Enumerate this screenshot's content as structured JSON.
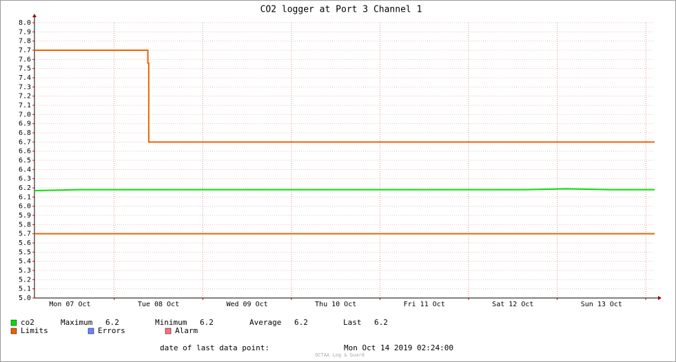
{
  "chart_data": {
    "type": "line",
    "title": "CO2 logger at Port 3 Channel 1",
    "xlim": [
      0,
      7
    ],
    "xticks": [
      {
        "value": 0.4,
        "label": "Mon 07 Oct"
      },
      {
        "value": 1.4,
        "label": "Tue 08 Oct"
      },
      {
        "value": 2.4,
        "label": "Wed 09 Oct"
      },
      {
        "value": 3.4,
        "label": "Thu 10 Oct"
      },
      {
        "value": 4.4,
        "label": "Fri 11 Oct"
      },
      {
        "value": 5.4,
        "label": "Sat 12 Oct"
      },
      {
        "value": 6.4,
        "label": "Sun 13 Oct"
      }
    ],
    "xgrid": [
      0.9,
      1.9,
      2.9,
      3.9,
      4.9,
      5.9,
      6.9
    ],
    "ylim": [
      5.0,
      8.0
    ],
    "yticks": [
      {
        "value": 5.0,
        "label": "5.0"
      },
      5.1,
      5.2,
      5.3,
      5.4,
      5.5,
      5.6,
      5.7,
      5.8,
      5.9,
      {
        "value": 6.0,
        "label": "6.0"
      },
      6.1,
      6.2,
      6.3,
      6.4,
      6.5,
      6.6,
      6.7,
      6.8,
      6.9,
      {
        "value": 7.0,
        "label": "7.0"
      },
      7.1,
      7.2,
      7.3,
      7.4,
      7.5,
      7.6,
      7.7,
      7.8,
      7.9,
      {
        "value": 8.0,
        "label": "8.0"
      }
    ],
    "grid": true,
    "series": [
      {
        "name": "co2",
        "color": "#00e000",
        "x": [
          0,
          0.5,
          1,
          1.5,
          2,
          2.5,
          3,
          3.5,
          4,
          4.5,
          5,
          5.5,
          6,
          6.5,
          7
        ],
        "values": [
          6.17,
          6.18,
          6.18,
          6.18,
          6.18,
          6.18,
          6.18,
          6.18,
          6.18,
          6.18,
          6.18,
          6.18,
          6.19,
          6.18,
          6.18
        ]
      },
      {
        "name": "Limits",
        "color": "#f06000",
        "x": [
          0,
          1.28,
          1.28,
          1.29,
          1.29,
          7,
          null,
          0,
          7
        ],
        "values": [
          7.7,
          7.7,
          7.56,
          7.56,
          6.7,
          6.7,
          null,
          5.7,
          5.7
        ]
      },
      {
        "name": "Errors",
        "color": "#7080ff",
        "x": [],
        "values": []
      },
      {
        "name": "Alarm",
        "color": "#ff7080",
        "x": [],
        "values": []
      }
    ],
    "stats": [
      {
        "label": "Maximum",
        "value": 6.2
      },
      {
        "label": "Minimum",
        "value": 6.2
      },
      {
        "label": "Average",
        "value": 6.2
      },
      {
        "label": "Last",
        "value": 6.2
      }
    ]
  },
  "footer": {
    "label": "date of last data point:",
    "date": "Mon Oct 14 2019 02:24:00",
    "watermark": "OCTAA Log & Guard"
  }
}
